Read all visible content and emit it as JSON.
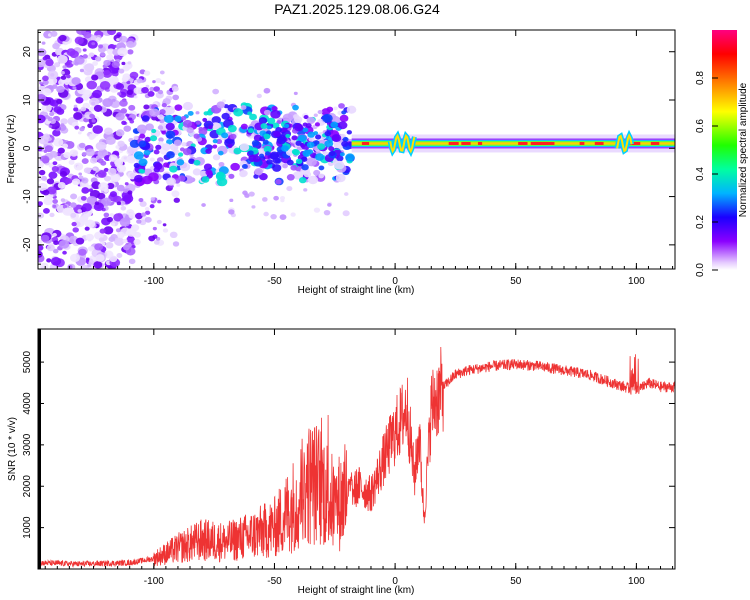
{
  "title": "PAZ1.2025.129.08.06.G24",
  "chart_data": [
    {
      "type": "heatmap",
      "name": "spectrogram",
      "xlabel": "Height of straight line (km)",
      "ylabel": "Frequency (Hz)",
      "xlim": [
        -148,
        116
      ],
      "ylim": [
        -25,
        24.5
      ],
      "x_ticks": [
        -100,
        -50,
        0,
        50,
        100
      ],
      "y_ticks": [
        -20,
        -10,
        0,
        10,
        20
      ],
      "colorbar": {
        "label": "Normalized spectral amplitude",
        "range": [
          0,
          1
        ],
        "ticks": [
          "0.0",
          "0.2",
          "0.4",
          "0.6",
          "0.8"
        ],
        "colors": [
          "#ffffff",
          "#e0c8ff",
          "#8000ff",
          "#2000ff",
          "#00c0ff",
          "#00ff80",
          "#40ff00",
          "#ffff00",
          "#ff8000",
          "#ff0000",
          "#ff0080"
        ]
      },
      "description_bands": [
        {
          "x_range": [
            -148,
            -108
          ],
          "freq_spread": 24,
          "typical_amplitude": 0.1
        },
        {
          "x_range": [
            -108,
            -18
          ],
          "freq_spread": 8,
          "typical_amplitude": 0.15
        },
        {
          "x_range": [
            -18,
            116
          ],
          "freq_center": 1,
          "freq_spread": 1,
          "typical_amplitude": 0.7
        }
      ]
    },
    {
      "type": "line",
      "name": "snr",
      "xlabel": "Height of straight line (km)",
      "ylabel": "SNR (10 * v/v)",
      "xlim": [
        -148,
        116
      ],
      "ylim": [
        0,
        5800
      ],
      "x_ticks": [
        -100,
        -50,
        0,
        50,
        100
      ],
      "y_ticks": [
        1000,
        2000,
        3000,
        4000,
        5000
      ],
      "color": "#ee3333",
      "x": [
        -148,
        -130,
        -110,
        -100,
        -90,
        -80,
        -70,
        -60,
        -50,
        -40,
        -35,
        -30,
        -25,
        -20,
        -15,
        -10,
        -5,
        0,
        5,
        8,
        10,
        12,
        15,
        20,
        25,
        30,
        40,
        50,
        60,
        70,
        80,
        90,
        95,
        100,
        105,
        110,
        116
      ],
      "values": [
        150,
        120,
        150,
        250,
        500,
        700,
        650,
        800,
        1000,
        1700,
        2100,
        2000,
        1500,
        1800,
        2000,
        1800,
        2600,
        3300,
        3900,
        2200,
        3300,
        1200,
        3900,
        4400,
        4700,
        4800,
        4900,
        4950,
        4900,
        4800,
        4700,
        4500,
        4400,
        4300,
        4500,
        4400,
        4400
      ]
    }
  ]
}
